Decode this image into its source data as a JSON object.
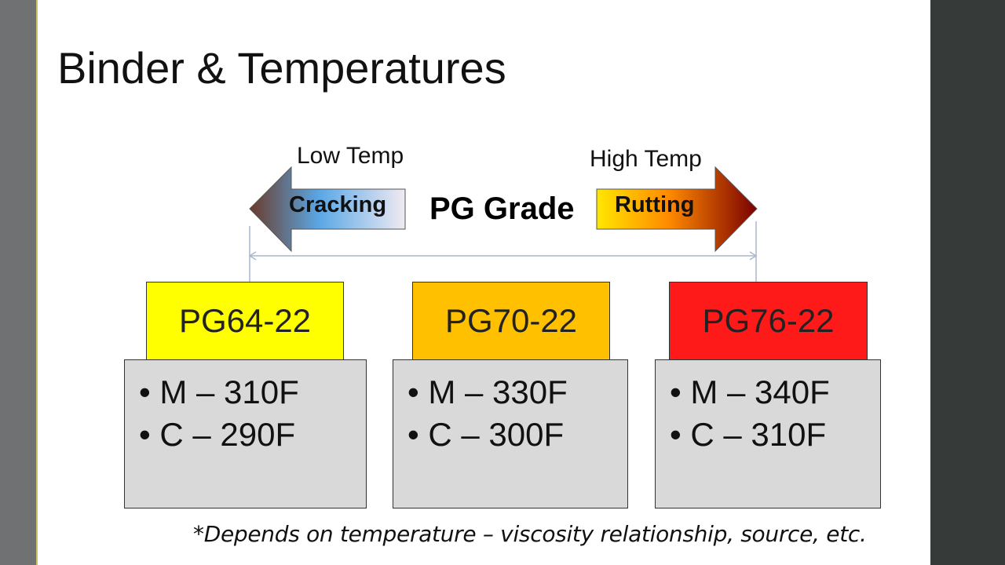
{
  "slide": {
    "title": "Binder & Temperatures",
    "low_temp_label": "Low Temp",
    "high_temp_label": "High Temp",
    "cracking_label": "Cracking",
    "rutting_label": "Rutting",
    "center_label": "PG Grade",
    "grades": [
      {
        "name": "PG64-22",
        "color": "#ffff00",
        "mix": "• M – 310F",
        "compaction": "• C – 290F"
      },
      {
        "name": "PG70-22",
        "color": "#ffc000",
        "mix": "• M – 330F",
        "compaction": "• C – 300F"
      },
      {
        "name": "PG76-22",
        "color": "#ff1a1a",
        "mix": "• M – 340F",
        "compaction": "• C – 310F"
      }
    ],
    "footnote": "*Depends on temperature – viscosity relationship, source, etc."
  },
  "colors": {
    "temp_box_fill": "#d9d9d9",
    "left_bar": "#6f7172",
    "right_bar": "#363a39"
  }
}
